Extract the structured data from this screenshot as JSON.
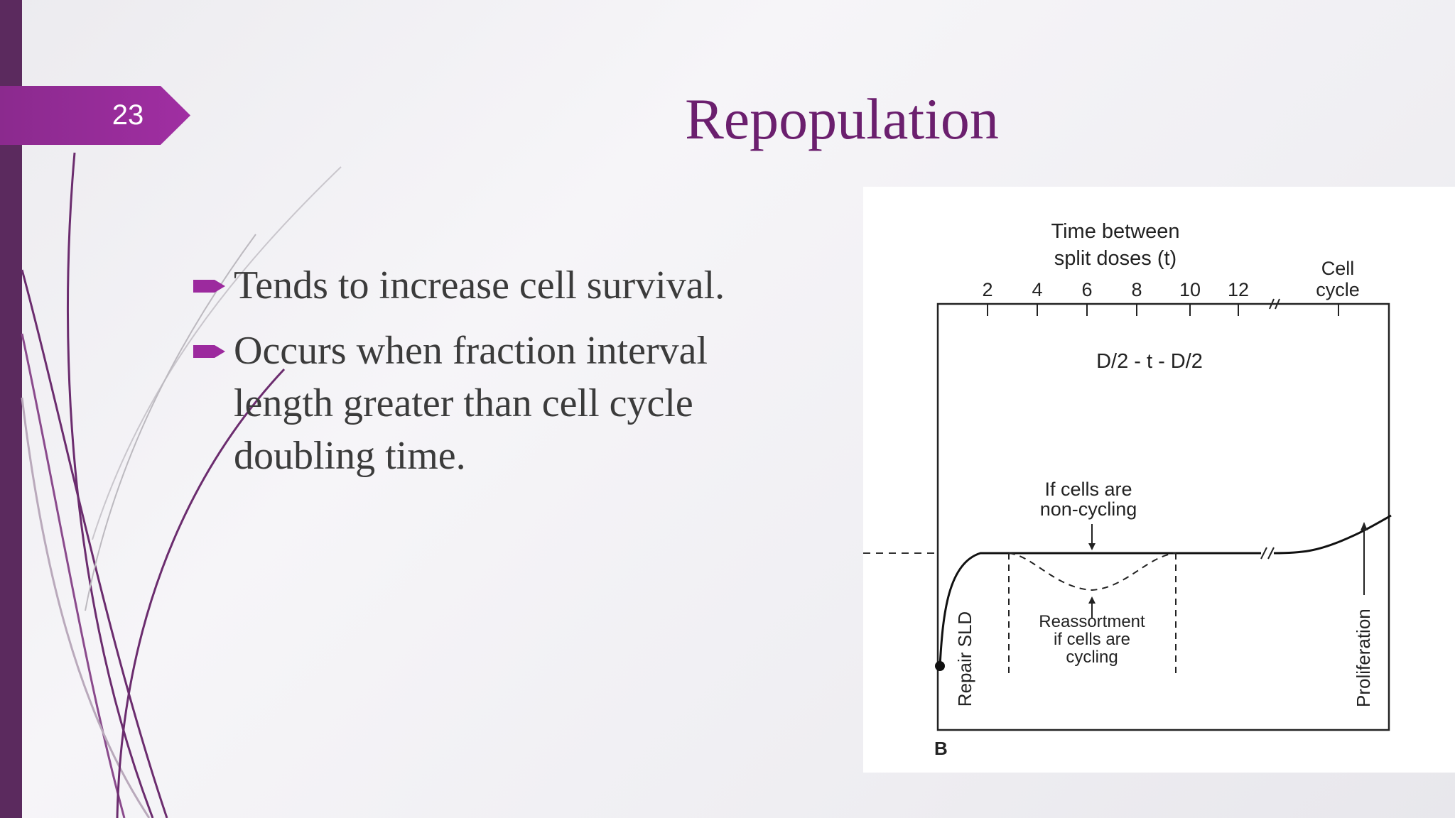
{
  "slide": {
    "number": "23",
    "title": "Repopulation",
    "bullets": [
      "Tends to increase cell survival.",
      "Occurs when fraction interval length greater than cell cycle doubling time."
    ]
  },
  "figure": {
    "axis_title_line1": "Time between",
    "axis_title_line2": "split doses (t)",
    "ticks": [
      "2",
      "4",
      "6",
      "8",
      "10",
      "12"
    ],
    "cell_cycle_line1": "Cell",
    "cell_cycle_line2": "cycle",
    "formula": "D/2 - t - D/2",
    "noncycling_line1": "If cells are",
    "noncycling_line2": "non-cycling",
    "reassortment_line1": "Reassortment",
    "reassortment_line2": "if cells are",
    "reassortment_line3": "cycling",
    "repair_label": "Repair SLD",
    "proliferation_label": "Proliferation",
    "panel_letter": "B"
  },
  "colors": {
    "accent": "#9c2a9e",
    "title": "#6b1f6e",
    "sidebar": "#5b2a5e"
  }
}
